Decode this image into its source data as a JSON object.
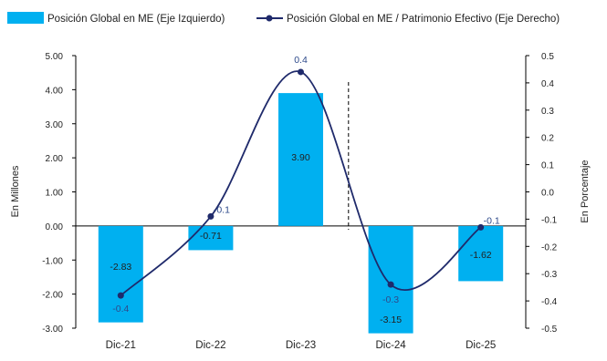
{
  "chart_data": {
    "type": "bar+line",
    "categories": [
      "Dic-21",
      "Dic-22",
      "Dic-23",
      "Dic-24",
      "Dic-25"
    ],
    "legend": {
      "placement": "top-left",
      "bar_label": "Posición Global en ME (Eje Izquierdo)",
      "line_label": "Posición Global en ME / Patrimonio Efectivo (Eje Derecho)"
    },
    "y_left": {
      "label": "En Millones",
      "range": [
        -3.0,
        5.0
      ],
      "ticks": [
        "5.00",
        "4.00",
        "3.00",
        "2.00",
        "1.00",
        "0.00",
        "-1.00",
        "-2.00",
        "-3.00"
      ]
    },
    "y_right": {
      "label": "En Porcentaje",
      "range": [
        -0.5,
        0.5
      ],
      "ticks": [
        "0.5",
        "0.4",
        "0.3",
        "0.2",
        "0.1",
        "0.0",
        "-0.1",
        "-0.2",
        "-0.3",
        "-0.4",
        "-0.5"
      ]
    },
    "bars": {
      "name": "Posición Global en ME (Eje Izquierdo)",
      "values": [
        -2.83,
        -0.71,
        3.9,
        -3.15,
        -1.62
      ],
      "labels": [
        "-2.83",
        "-0.71",
        "3.90",
        "-3.15",
        "-1.62"
      ]
    },
    "line": {
      "name": "Posición Global en ME / Patrimonio Efectivo (Eje Derecho)",
      "values": [
        -0.38,
        -0.09,
        0.44,
        -0.34,
        -0.13
      ],
      "labels": [
        "-0.4",
        "-0.1",
        "0.4",
        "-0.3",
        "-0.1"
      ]
    },
    "grid": false,
    "dashed_divider_after": "Dic-23",
    "colors": {
      "bar": "#00B0F0",
      "line": "#1F2A6B",
      "line_label": "#2E4A8B"
    }
  }
}
